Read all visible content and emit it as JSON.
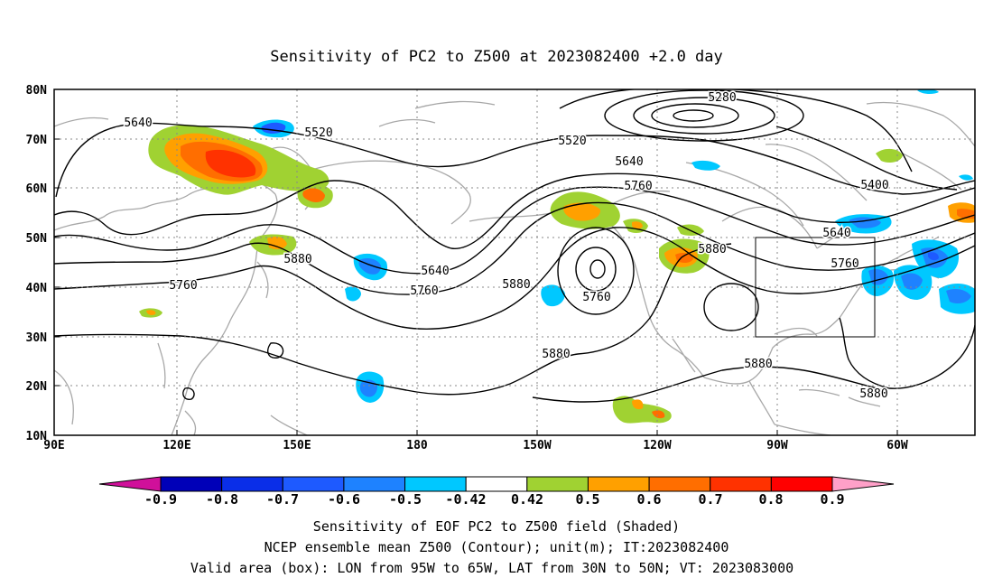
{
  "title": "Sensitivity of PC2 to Z500 at 2023082400 +2.0 day",
  "map": {
    "lon_ticks": [
      "90E",
      "120E",
      "150E",
      "180",
      "150W",
      "120W",
      "90W",
      "60W"
    ],
    "lat_ticks": [
      "80N",
      "70N",
      "60N",
      "50N",
      "40N",
      "30N",
      "20N",
      "10N"
    ],
    "lon_range": [
      "90E",
      "45W"
    ],
    "lat_range": [
      "10N",
      "80N"
    ],
    "grid": "dotted",
    "contour_labels": [
      "5280",
      "5400",
      "5520",
      "5520",
      "5640",
      "5640",
      "5640",
      "5640",
      "5760",
      "5760",
      "5760",
      "5760",
      "5760",
      "5880",
      "5880",
      "5880",
      "5880",
      "5880",
      "5880"
    ],
    "valid_box": {
      "lon": [
        "95W",
        "65W"
      ],
      "lat": [
        "30N",
        "50N"
      ]
    }
  },
  "colorbar": {
    "labels": [
      "-0.9",
      "-0.8",
      "-0.7",
      "-0.6",
      "-0.5",
      "-0.42",
      "0.42",
      "0.5",
      "0.6",
      "0.7",
      "0.8",
      "0.9"
    ],
    "colors": [
      "#d0109a",
      "#0000b8",
      "#0a2ee8",
      "#1e5aff",
      "#1e82ff",
      "#00c8ff",
      "#ffffff",
      "#a0d232",
      "#ffa000",
      "#ff6e00",
      "#ff3200",
      "#ff0000",
      "#ffa0c8"
    ]
  },
  "caption": {
    "line1": "Sensitivity of EOF PC2 to Z500 field (Shaded)",
    "line2": "NCEP ensemble mean Z500 (Contour); unit(m); IT:2023082400",
    "line3": "Valid area (box): LON from 95W to 65W, LAT from 30N to 50N; VT: 2023083000"
  }
}
